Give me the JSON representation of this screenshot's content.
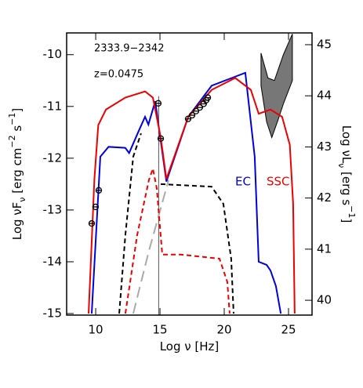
{
  "chart_data": {
    "type": "line",
    "annotations": [
      "2333.9−2342",
      "z=0.0475"
    ],
    "curve_labels": [
      {
        "text": "EC",
        "color": "#0000dd"
      },
      {
        "text": "SSC",
        "color": "#ee0000"
      }
    ],
    "xlabel": [
      {
        "text": "Log ν  [Hz]"
      }
    ],
    "ylabel": [
      {
        "text": "Log νF"
      },
      {
        "text": "ν",
        "shift": "sub"
      },
      {
        "text": "  [erg cm"
      },
      {
        "text": "−2",
        "shift": "super"
      },
      {
        "text": " s"
      },
      {
        "text": "−1",
        "shift": "super"
      },
      {
        "text": "]"
      }
    ],
    "y2label": [
      {
        "text": "Log νL"
      },
      {
        "text": "ν",
        "shift": "sub"
      },
      {
        "text": "  [erg s"
      },
      {
        "text": "−1",
        "shift": "super"
      },
      {
        "text": "]"
      }
    ],
    "xlim": [
      7.74,
      26.83
    ],
    "xticks": [
      10,
      15,
      20,
      25
    ],
    "ylim": [
      -15.03,
      -9.58
    ],
    "yticks": [
      -15,
      -14,
      -13,
      -12,
      -11,
      -10
    ],
    "y2lim": [
      39.71,
      45.23
    ],
    "y2ticks": [
      40,
      41,
      42,
      43,
      44,
      45
    ],
    "band": {
      "color": "#777777",
      "x": [
        22.86,
        23.4,
        23.9,
        24.6,
        25.3,
        25.3,
        24.6,
        24.2,
        23.7,
        23.3,
        22.86
      ],
      "y": [
        -9.97,
        -10.45,
        -10.5,
        -10.0,
        -9.6,
        -10.5,
        -10.95,
        -11.25,
        -11.6,
        -11.3,
        -10.6
      ]
    },
    "vline": {
      "x": 14.9,
      "top": -10.8,
      "color": "#555555"
    },
    "series": [
      {
        "color": "#aaaaaa",
        "dash": "14,7",
        "x": [
          12.92,
          14.14,
          15.67
        ],
        "y": [
          -15,
          -13.79,
          -12.42
        ]
      },
      {
        "color": "#000000",
        "dash": "6,4",
        "x": [
          11.83,
          12.31,
          12.92,
          13.53,
          null,
          15.06,
          19.02,
          19.93,
          20.54,
          20.73
        ],
        "y": [
          -15,
          -13.48,
          -11.97,
          -11.52,
          null,
          -12.5,
          -12.55,
          -12.88,
          -13.94,
          -15
        ]
      },
      {
        "color": "#ee0000",
        "dash": "6,4",
        "x": [
          12.31,
          13.23,
          14.14,
          14.45,
          14.75,
          15.18,
          16.6,
          19.63,
          20.24,
          20.42
        ],
        "y": [
          -15,
          -13.48,
          -12.42,
          -12.2,
          -12.58,
          -13.86,
          -13.86,
          -13.94,
          -14.39,
          -15
        ]
      },
      {
        "color": "#0000dd",
        "x": [
          9.69,
          10.36,
          11.0,
          12.3,
          12.6,
          13.3,
          13.84,
          14.1,
          14.63,
          15.5,
          17.2,
          19.02,
          21.64,
          22.37,
          22.68,
          23.3,
          23.6,
          24.02,
          24.4
        ],
        "y": [
          -15,
          -11.97,
          -11.78,
          -11.8,
          -11.9,
          -11.5,
          -11.2,
          -11.35,
          -10.9,
          -12.45,
          -11.2,
          -10.6,
          -10.35,
          -11.97,
          -14.0,
          -14.06,
          -14.17,
          -14.47,
          -15
        ]
      },
      {
        "color": "#ee0000",
        "x": [
          9.45,
          9.9,
          10.2,
          10.8,
          12.3,
          13.84,
          14.45,
          15.06,
          15.5,
          17.2,
          19.02,
          20.85,
          22.07,
          22.68,
          23.6,
          24.5,
          25.1,
          25.36,
          25.48
        ],
        "y": [
          -15,
          -12.4,
          -11.36,
          -11.06,
          -10.83,
          -10.71,
          -10.83,
          -11.6,
          -12.4,
          -11.2,
          -10.68,
          -10.45,
          -10.68,
          -11.14,
          -11.06,
          -11.2,
          -11.74,
          -12.88,
          -15
        ]
      }
    ],
    "points": {
      "color": "#000000",
      "x": [
        9.69,
        9.99,
        10.24,
        14.87,
        15.06,
        17.19,
        17.5,
        17.8,
        18.1,
        18.4,
        18.59,
        18.72
      ],
      "y": [
        -13.26,
        -12.94,
        -12.62,
        -10.94,
        -11.62,
        -11.24,
        -11.17,
        -11.09,
        -11.02,
        -10.95,
        -10.88,
        -10.83
      ]
    }
  }
}
